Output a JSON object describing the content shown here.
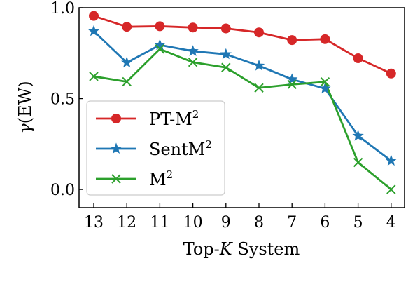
{
  "chart_data": {
    "type": "line",
    "xlabel_prefix": "Top-",
    "xlabel_var": "K",
    "xlabel_suffix": " System",
    "ylabel_var": "γ",
    "ylabel_rest": "(EW)",
    "categories": [
      "13",
      "12",
      "11",
      "10",
      "9",
      "8",
      "7",
      "6",
      "5",
      "4"
    ],
    "ylim": [
      -0.1,
      1.0
    ],
    "yticks": [
      0.0,
      0.5,
      1.0
    ],
    "ytick_labels": [
      "0.0",
      "0.5",
      "1.0"
    ],
    "grid": false,
    "legend_position": "lower-left",
    "series": [
      {
        "name": "PT-M",
        "name_sup": "2",
        "color": "#d62728",
        "marker": "circle",
        "values": [
          0.955,
          0.895,
          0.898,
          0.891,
          0.886,
          0.864,
          0.822,
          0.827,
          0.722,
          0.638
        ]
      },
      {
        "name": "SentM",
        "name_sup": "2",
        "color": "#1f77b4",
        "marker": "star",
        "values": [
          0.871,
          0.698,
          0.795,
          0.761,
          0.744,
          0.681,
          0.606,
          0.555,
          0.295,
          0.158
        ]
      },
      {
        "name": "M",
        "name_sup": "2",
        "color": "#2ca02c",
        "marker": "x",
        "values": [
          0.622,
          0.593,
          0.773,
          0.7,
          0.671,
          0.559,
          0.578,
          0.592,
          0.149,
          0.0
        ]
      }
    ]
  }
}
